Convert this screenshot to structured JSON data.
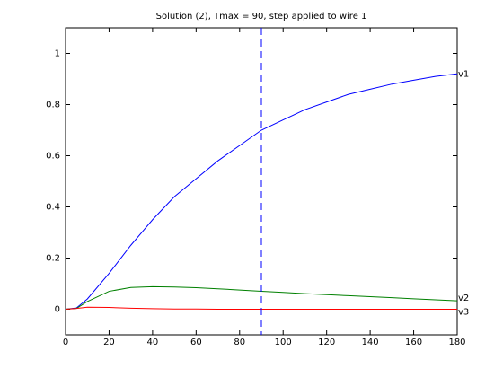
{
  "chart_data": {
    "type": "line",
    "title": "Solution (2), Tmax = 90, step applied to wire 1",
    "x": [
      0,
      5,
      10,
      20,
      30,
      40,
      50,
      60,
      70,
      80,
      90,
      100,
      110,
      120,
      130,
      140,
      150,
      160,
      170,
      180
    ],
    "series": [
      {
        "name": "v1",
        "color": "#0000ff",
        "values": [
          0,
          0.005,
          0.04,
          0.14,
          0.25,
          0.35,
          0.44,
          0.51,
          0.58,
          0.64,
          0.7,
          0.74,
          0.78,
          0.81,
          0.84,
          0.86,
          0.88,
          0.895,
          0.91,
          0.92
        ]
      },
      {
        "name": "v2",
        "color": "#008000",
        "values": [
          0,
          0.003,
          0.03,
          0.07,
          0.085,
          0.088,
          0.087,
          0.084,
          0.08,
          0.075,
          0.07,
          0.066,
          0.061,
          0.057,
          0.053,
          0.049,
          0.045,
          0.041,
          0.037,
          0.033
        ]
      },
      {
        "name": "v3",
        "color": "#ff0000",
        "values": [
          0,
          0.003,
          0.008,
          0.007,
          0.004,
          0.002,
          0.001,
          0.001,
          0,
          0,
          0,
          0,
          0,
          0,
          0,
          0,
          0,
          0,
          0,
          0
        ]
      }
    ],
    "vline": {
      "x": 90,
      "color": "#0000ff"
    },
    "xlim": [
      0,
      180
    ],
    "xticks": [
      0,
      20,
      40,
      60,
      80,
      100,
      120,
      140,
      160,
      180
    ],
    "ylim": [
      -0.1,
      1.1
    ],
    "yticks": [
      0,
      0.2,
      0.4,
      0.6,
      0.8,
      1
    ]
  }
}
